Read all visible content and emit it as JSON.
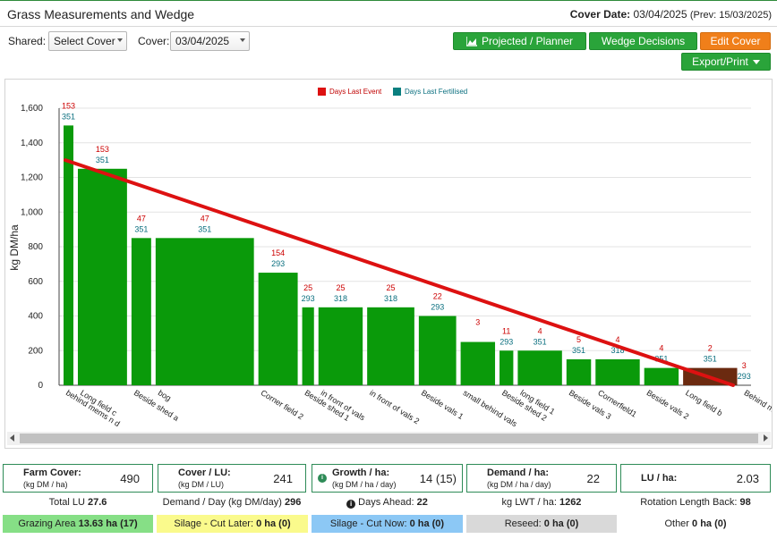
{
  "header": {
    "title": "Grass Measurements and Wedge",
    "cover_date_label": "Cover Date:",
    "cover_date": "03/04/2025",
    "prev_label": "(Prev: 15/03/2025)"
  },
  "filters": {
    "shared_label": "Shared:",
    "shared_value": "Select Cover",
    "cover_label": "Cover:",
    "cover_value": "03/04/2025"
  },
  "buttons": {
    "projected": "Projected / Planner",
    "wedge": "Wedge Decisions",
    "edit": "Edit Cover",
    "export": "Export/Print"
  },
  "colors": {
    "bar_green": "#0a9a0a",
    "bar_brown": "#6b2a10",
    "wedge_line": "#dd1111",
    "days_event": "#cc0000",
    "days_fert": "#0a6f7f"
  },
  "chart_data": {
    "type": "bar",
    "ylabel": "kg DM/ha",
    "ylim": [
      0,
      1600
    ],
    "yticks": [
      "0",
      "200",
      "400",
      "600",
      "800",
      "1,000",
      "1,200",
      "1,400",
      "1,600"
    ],
    "legend": [
      {
        "name": "Days Last Event",
        "color": "#dd1111"
      },
      {
        "name": "Days Last Fertilised",
        "color": "#0a7f7f"
      }
    ],
    "paddocks": [
      {
        "name": "behind mems n d",
        "cover": 1500,
        "area": 1,
        "event": "153",
        "fert": "351",
        "color": "green"
      },
      {
        "name": "Long field c",
        "cover": 1250,
        "area": 5,
        "event": "153",
        "fert": "351",
        "color": "green"
      },
      {
        "name": "Beside shed a",
        "cover": 850,
        "area": 2,
        "event": "47",
        "fert": "351",
        "color": "green"
      },
      {
        "name": "bog",
        "cover": 850,
        "area": 10,
        "event": "47",
        "fert": "351",
        "color": "green"
      },
      {
        "name": "Corner field 2",
        "cover": 650,
        "area": 4,
        "event": "154",
        "fert": "293",
        "color": "green"
      },
      {
        "name": "Beside shed 1",
        "cover": 450,
        "area": 1.2,
        "event": "25",
        "fert": "293",
        "color": "green"
      },
      {
        "name": "in front of vals",
        "cover": 450,
        "area": 4.5,
        "event": "25",
        "fert": "318",
        "color": "green"
      },
      {
        "name": "in front of vals 2",
        "cover": 450,
        "area": 4.8,
        "event": "25",
        "fert": "318",
        "color": "green"
      },
      {
        "name": "Beside vals 1",
        "cover": 400,
        "area": 3.8,
        "event": "22",
        "fert": "293",
        "color": "green"
      },
      {
        "name": "small behind vals",
        "cover": 250,
        "area": 3.5,
        "event": "3",
        "fert": "",
        "color": "green"
      },
      {
        "name": "Beside shed 2",
        "cover": 200,
        "area": 1.4,
        "event": "11",
        "fert": "293",
        "color": "green"
      },
      {
        "name": "long field 1",
        "cover": 200,
        "area": 4.5,
        "event": "4",
        "fert": "351",
        "color": "green"
      },
      {
        "name": "Beside vals 3",
        "cover": 150,
        "area": 2.5,
        "event": "5",
        "fert": "351",
        "color": "green"
      },
      {
        "name": "Cornerfield1",
        "cover": 150,
        "area": 4.5,
        "event": "4",
        "fert": "318",
        "color": "green"
      },
      {
        "name": "Beside vals 2",
        "cover": 100,
        "area": 3.5,
        "event": "4",
        "fert": "351",
        "color": "green"
      },
      {
        "name": "Long field b",
        "cover": 100,
        "area": 5.5,
        "event": "2",
        "fert": "351",
        "color": "brown"
      },
      {
        "name": "Behind mem and",
        "cover": 0,
        "area": 0.5,
        "event": "3",
        "fert": "293",
        "color": "green"
      }
    ],
    "wedge_line": {
      "start": 1300,
      "end": 0
    }
  },
  "stats": {
    "farm_cover": {
      "title": "Farm Cover:",
      "sub": "(kg DM / ha)",
      "value": "490"
    },
    "cover_lu": {
      "title": "Cover / LU:",
      "sub": "(kg DM / LU)",
      "value": "241"
    },
    "growth": {
      "title": "Growth / ha:",
      "sub": "(kg DM / ha / day)",
      "value": "14 (15)",
      "badge": "i"
    },
    "demand": {
      "title": "Demand / ha:",
      "sub": "(kg DM / ha / day)",
      "value": "22"
    },
    "lu_ha": {
      "title": "LU / ha:",
      "value": "2.03"
    }
  },
  "row1": {
    "total_lu_label": "Total LU",
    "total_lu": "27.6",
    "demand_day_label": "Demand / Day (kg DM/day)",
    "demand_day": "296",
    "days_ahead_label": "Days Ahead:",
    "days_ahead": "22",
    "days_ahead_icon": "i",
    "lwt_label": "kg LWT / ha:",
    "lwt": "1262",
    "rotation_label": "Rotation Length Back:",
    "rotation": "98"
  },
  "row2": {
    "grazing_label": "Grazing Area",
    "grazing": "13.63 ha (17)",
    "silage_later_label": "Silage - Cut Later:",
    "silage_later": "0 ha (0)",
    "silage_now_label": "Silage - Cut Now:",
    "silage_now": "0 ha (0)",
    "reseed_label": "Reseed:",
    "reseed": "0 ha (0)",
    "other_label": "Other",
    "other": "0 ha (0)"
  }
}
